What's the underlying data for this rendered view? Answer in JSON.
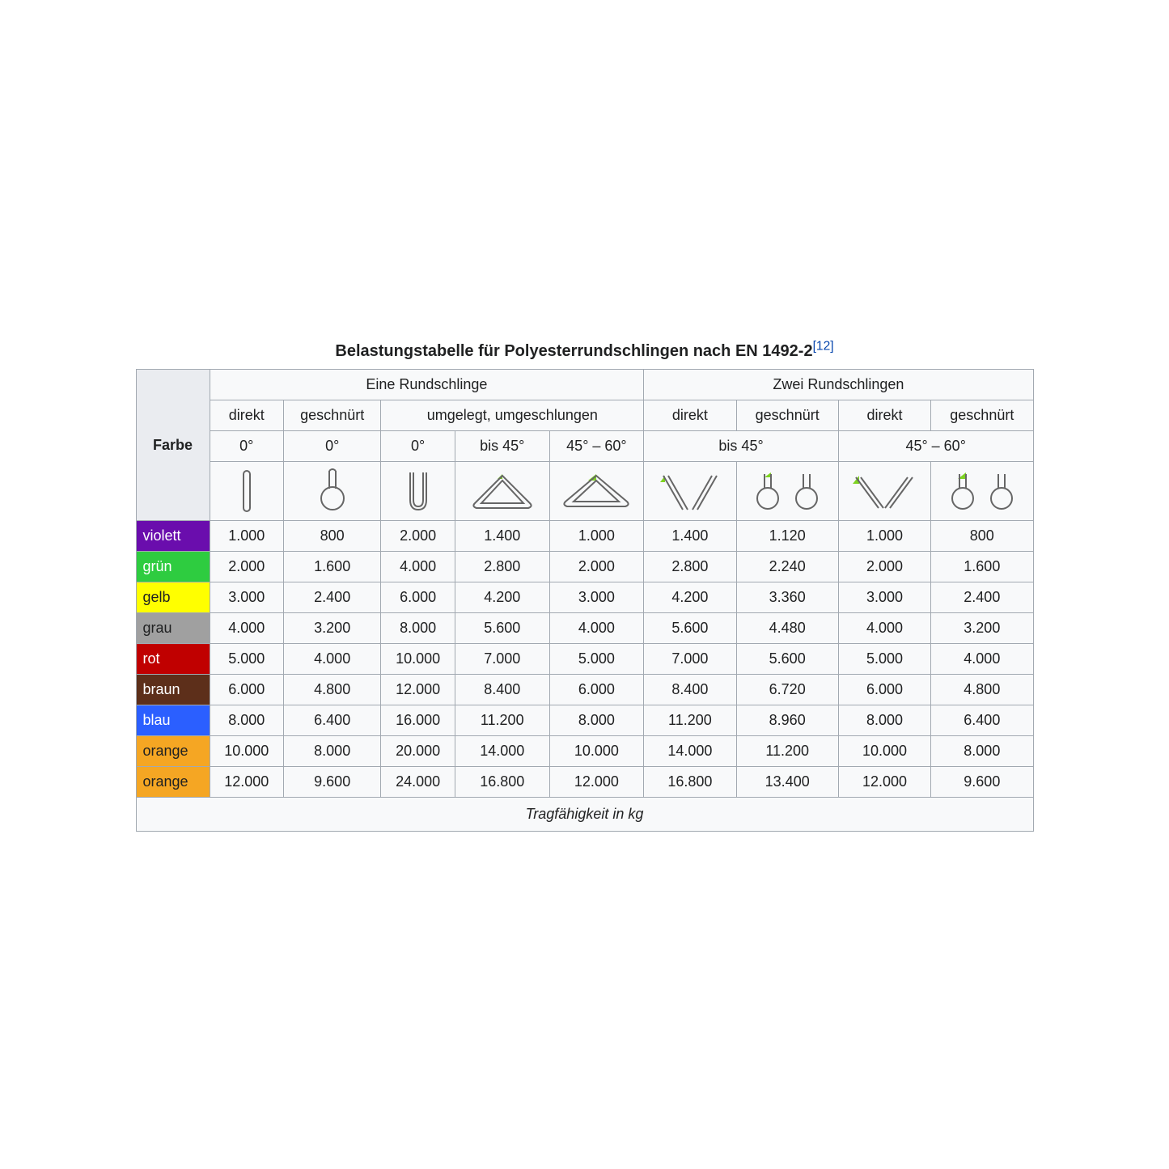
{
  "caption": {
    "text": "Belastungstabelle für Polyesterrundschlingen nach EN 1492-2",
    "ref": "[12]",
    "ref_color": "#0645ad",
    "fontsize_pt": 15,
    "fontweight": "bold"
  },
  "table": {
    "border_color": "#a2a9b1",
    "header_bg": "#eaecf0",
    "cell_bg": "#f8f9fa",
    "text_color": "#202122",
    "fontsize_pt": 13,
    "font_family": "Arial, sans-serif",
    "icon_stroke": "#666666",
    "icon_accent": "#7ed321",
    "headers": {
      "row_label": "Farbe",
      "group1": "Eine Rundschlinge",
      "group2": "Zwei Rundschlingen",
      "sub": {
        "direkt": "direkt",
        "geschnuert": "geschnürt",
        "umgelegt": "umgelegt, umgeschlungen"
      },
      "angles": {
        "zero": "0°",
        "to45": "bis 45°",
        "45to60": "45° – 60°"
      }
    },
    "columns": [
      "farbe_label",
      "eine_direkt_0",
      "eine_geschnuert_0",
      "eine_umgelegt_0",
      "eine_umgelegt_bis45",
      "eine_umgelegt_45_60",
      "zwei_direkt_bis45",
      "zwei_geschnuert_bis45",
      "zwei_direkt_45_60",
      "zwei_geschnuert_45_60"
    ],
    "rows": [
      {
        "label": "violett",
        "bg": "#6a0dad",
        "fg": "#ffffff",
        "values": [
          "1.000",
          "800",
          "2.000",
          "1.400",
          "1.000",
          "1.400",
          "1.120",
          "1.000",
          "800"
        ]
      },
      {
        "label": "grün",
        "bg": "#2ecc40",
        "fg": "#ffffff",
        "values": [
          "2.000",
          "1.600",
          "4.000",
          "2.800",
          "2.000",
          "2.800",
          "2.240",
          "2.000",
          "1.600"
        ]
      },
      {
        "label": "gelb",
        "bg": "#ffff00",
        "fg": "#202122",
        "values": [
          "3.000",
          "2.400",
          "6.000",
          "4.200",
          "3.000",
          "4.200",
          "3.360",
          "3.000",
          "2.400"
        ]
      },
      {
        "label": "grau",
        "bg": "#a0a0a0",
        "fg": "#202122",
        "values": [
          "4.000",
          "3.200",
          "8.000",
          "5.600",
          "4.000",
          "5.600",
          "4.480",
          "4.000",
          "3.200"
        ]
      },
      {
        "label": "rot",
        "bg": "#c00000",
        "fg": "#ffffff",
        "values": [
          "5.000",
          "4.000",
          "10.000",
          "7.000",
          "5.000",
          "7.000",
          "5.600",
          "5.000",
          "4.000"
        ]
      },
      {
        "label": "braun",
        "bg": "#5d2f1a",
        "fg": "#ffffff",
        "values": [
          "6.000",
          "4.800",
          "12.000",
          "8.400",
          "6.000",
          "8.400",
          "6.720",
          "6.000",
          "4.800"
        ]
      },
      {
        "label": "blau",
        "bg": "#2b5fff",
        "fg": "#ffffff",
        "values": [
          "8.000",
          "6.400",
          "16.000",
          "11.200",
          "8.000",
          "11.200",
          "8.960",
          "8.000",
          "6.400"
        ]
      },
      {
        "label": "orange",
        "bg": "#f5a623",
        "fg": "#202122",
        "values": [
          "10.000",
          "8.000",
          "20.000",
          "14.000",
          "10.000",
          "14.000",
          "11.200",
          "10.000",
          "8.000"
        ]
      },
      {
        "label": "orange",
        "bg": "#f5a623",
        "fg": "#202122",
        "values": [
          "12.000",
          "9.600",
          "24.000",
          "16.800",
          "12.000",
          "16.800",
          "13.400",
          "12.000",
          "9.600"
        ]
      }
    ],
    "footer": "Tragfähigkeit in kg"
  }
}
